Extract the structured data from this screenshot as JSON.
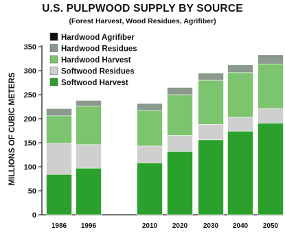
{
  "chart_data": {
    "type": "bar",
    "stacked": true,
    "title": "U.S. PULPWOOD SUPPLY BY SOURCE",
    "subtitle": "(Forest Harvest, Wood Residues, Agrifiber)",
    "xlabel": "",
    "ylabel": "MILLIONS OF CUBIC METERS",
    "ylim": [
      0,
      350
    ],
    "yticks": [
      0,
      50,
      100,
      150,
      200,
      250,
      300,
      350
    ],
    "grid": false,
    "legend_position": "top-left",
    "categories": [
      "1986",
      "1996",
      "2010",
      "2020",
      "2030",
      "2040",
      "2050"
    ],
    "series": [
      {
        "name": "Softwood Harvest",
        "color": "#2ca02c",
        "values": [
          84,
          97,
          108,
          132,
          156,
          174,
          191
        ]
      },
      {
        "name": "Softwood Residues",
        "color": "#cfcfcf",
        "values": [
          65,
          49,
          35,
          33,
          32,
          29,
          30
        ]
      },
      {
        "name": "Hardwood Harvest",
        "color": "#7dc46f",
        "values": [
          57,
          80,
          74,
          85,
          92,
          93,
          93
        ]
      },
      {
        "name": "Hardwood Residues",
        "color": "#8a9a8c",
        "values": [
          15,
          12,
          15,
          15,
          15,
          16,
          15
        ]
      },
      {
        "name": "Hardwood Agrifiber",
        "color": "#111111",
        "values": [
          0,
          0,
          0,
          0,
          0,
          0,
          3
        ]
      }
    ]
  }
}
